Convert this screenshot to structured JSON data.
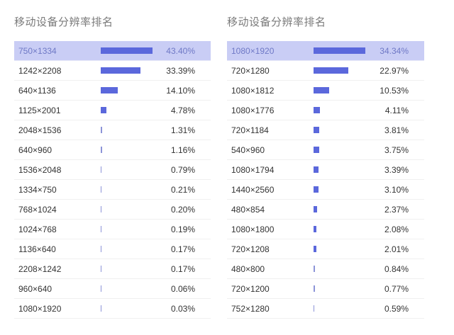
{
  "left_panel": {
    "title": "移动设备分辨率排名",
    "rows": [
      {
        "label": "750×1334",
        "value": 43.4,
        "pct": "43.40%",
        "highlight": true
      },
      {
        "label": "1242×2208",
        "value": 33.39,
        "pct": "33.39%"
      },
      {
        "label": "640×1136",
        "value": 14.1,
        "pct": "14.10%"
      },
      {
        "label": "1125×2001",
        "value": 4.78,
        "pct": "4.78%"
      },
      {
        "label": "2048×1536",
        "value": 1.31,
        "pct": "1.31%"
      },
      {
        "label": "640×960",
        "value": 1.16,
        "pct": "1.16%"
      },
      {
        "label": "1536×2048",
        "value": 0.79,
        "pct": "0.79%"
      },
      {
        "label": "1334×750",
        "value": 0.21,
        "pct": "0.21%"
      },
      {
        "label": "768×1024",
        "value": 0.2,
        "pct": "0.20%"
      },
      {
        "label": "1024×768",
        "value": 0.19,
        "pct": "0.19%"
      },
      {
        "label": "1136×640",
        "value": 0.17,
        "pct": "0.17%"
      },
      {
        "label": "2208×1242",
        "value": 0.17,
        "pct": "0.17%"
      },
      {
        "label": "960×640",
        "value": 0.06,
        "pct": "0.06%"
      },
      {
        "label": "1080×1920",
        "value": 0.03,
        "pct": "0.03%"
      }
    ]
  },
  "right_panel": {
    "title": "移动设备分辨率排名",
    "rows": [
      {
        "label": "1080×1920",
        "value": 34.34,
        "pct": "34.34%",
        "highlight": true
      },
      {
        "label": "720×1280",
        "value": 22.97,
        "pct": "22.97%"
      },
      {
        "label": "1080×1812",
        "value": 10.53,
        "pct": "10.53%"
      },
      {
        "label": "1080×1776",
        "value": 4.11,
        "pct": "4.11%"
      },
      {
        "label": "720×1184",
        "value": 3.81,
        "pct": "3.81%"
      },
      {
        "label": "540×960",
        "value": 3.75,
        "pct": "3.75%"
      },
      {
        "label": "1080×1794",
        "value": 3.39,
        "pct": "3.39%"
      },
      {
        "label": "1440×2560",
        "value": 3.1,
        "pct": "3.10%"
      },
      {
        "label": "480×854",
        "value": 2.37,
        "pct": "2.37%"
      },
      {
        "label": "1080×1800",
        "value": 2.08,
        "pct": "2.08%"
      },
      {
        "label": "720×1208",
        "value": 2.01,
        "pct": "2.01%"
      },
      {
        "label": "480×800",
        "value": 0.84,
        "pct": "0.84%"
      },
      {
        "label": "720×1200",
        "value": 0.77,
        "pct": "0.77%"
      },
      {
        "label": "752×1280",
        "value": 0.59,
        "pct": "0.59%"
      }
    ]
  },
  "colors": {
    "bar": "#5b68dc",
    "highlight_bg": "#c9cdf5",
    "highlight_text": "#6f79c6",
    "title": "#7a7a7a",
    "text": "#333333"
  },
  "chart_data": [
    {
      "type": "bar",
      "orientation": "horizontal",
      "title": "移动设备分辨率排名",
      "categories": [
        "750×1334",
        "1242×2208",
        "640×1136",
        "1125×2001",
        "2048×1536",
        "640×960",
        "1536×2048",
        "1334×750",
        "768×1024",
        "1024×768",
        "1136×640",
        "2208×1242",
        "960×640",
        "1080×1920"
      ],
      "values": [
        43.4,
        33.39,
        14.1,
        4.78,
        1.31,
        1.16,
        0.79,
        0.21,
        0.2,
        0.19,
        0.17,
        0.17,
        0.06,
        0.03
      ],
      "unit": "%",
      "highlighted_category": "750×1334",
      "grid": false,
      "legend": null
    },
    {
      "type": "bar",
      "orientation": "horizontal",
      "title": "移动设备分辨率排名",
      "categories": [
        "1080×1920",
        "720×1280",
        "1080×1812",
        "1080×1776",
        "720×1184",
        "540×960",
        "1080×1794",
        "1440×2560",
        "480×854",
        "1080×1800",
        "720×1208",
        "480×800",
        "720×1200",
        "752×1280"
      ],
      "values": [
        34.34,
        22.97,
        10.53,
        4.11,
        3.81,
        3.75,
        3.39,
        3.1,
        2.37,
        2.08,
        2.01,
        0.84,
        0.77,
        0.59
      ],
      "unit": "%",
      "highlighted_category": "1080×1920",
      "grid": false,
      "legend": null
    }
  ]
}
